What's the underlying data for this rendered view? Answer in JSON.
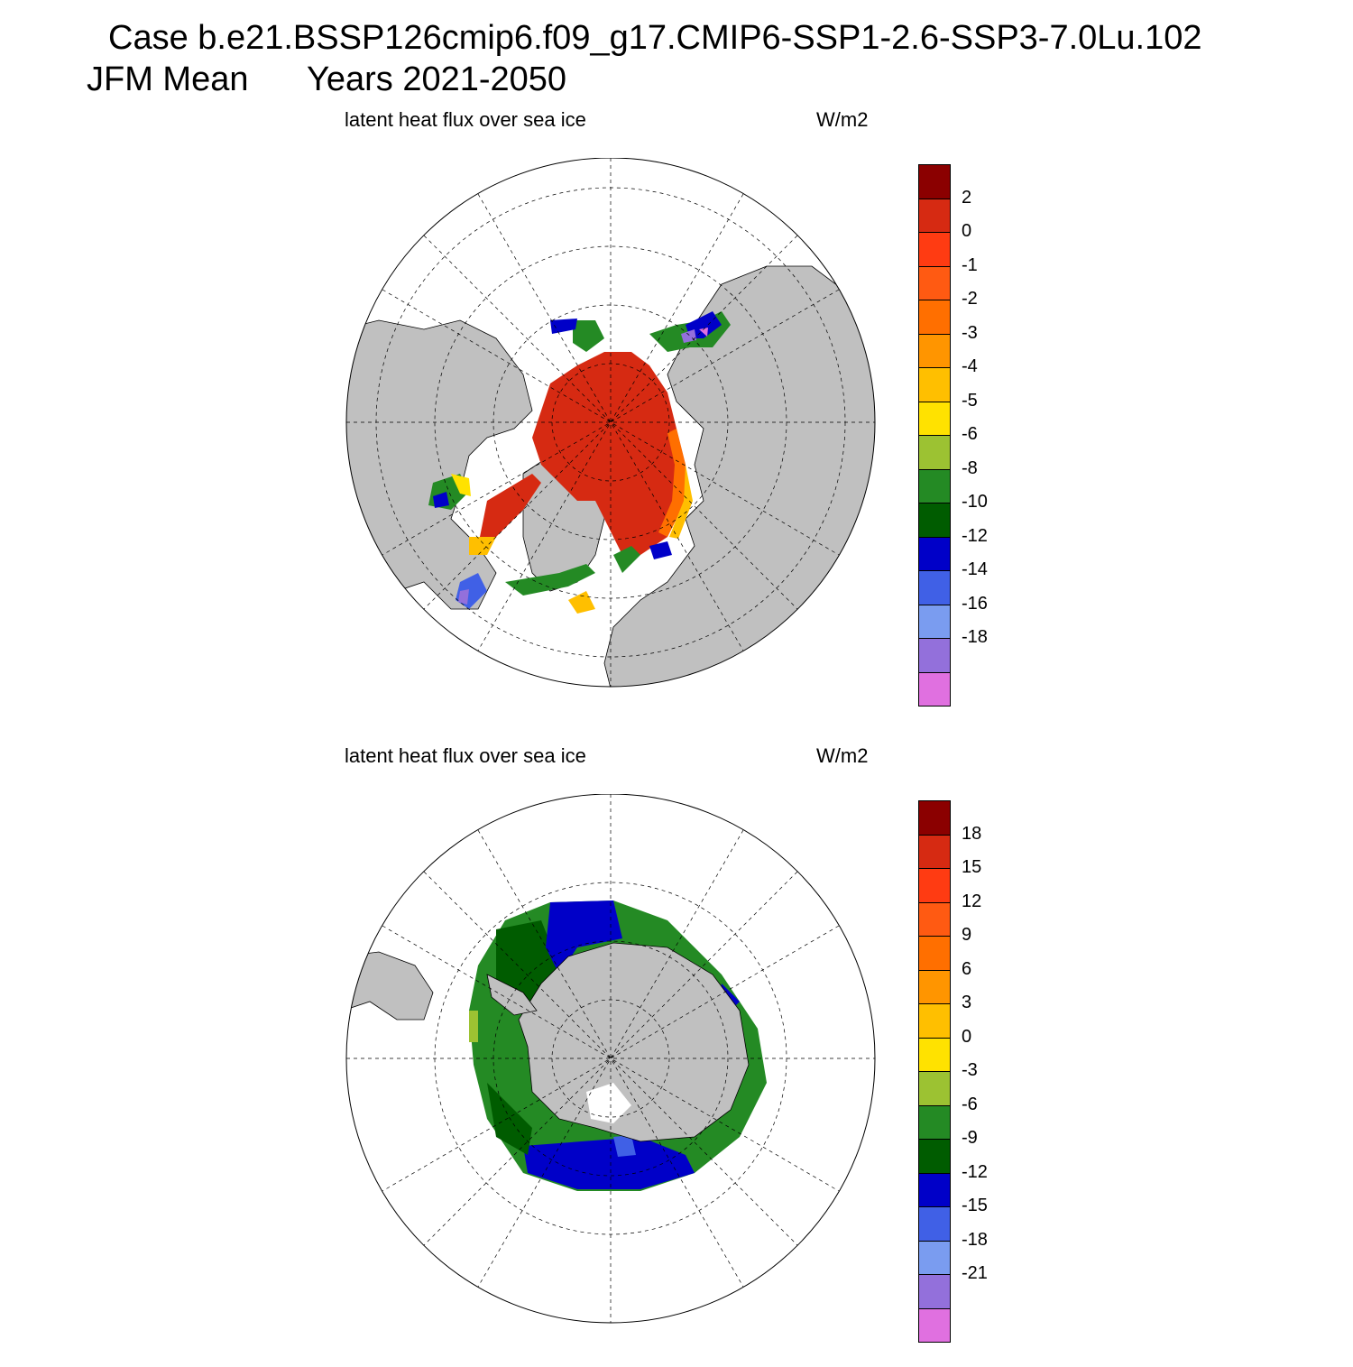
{
  "title": {
    "line1": "Case b.e21.BSSP126cmip6.f09_g17.CMIP6-SSP1-2.6-SSP3-7.0Lu.102",
    "line2_left": "JFM Mean",
    "line2_right": "Years 2021-2050"
  },
  "panels": [
    {
      "id": "north",
      "variable_label": "latent heat flux over sea ice",
      "unit_label": "W/m2",
      "region": "Arctic",
      "colorbar": {
        "colors": [
          "#8b0000",
          "#d62a12",
          "#ff3b12",
          "#ff5a12",
          "#ff6f00",
          "#ff9500",
          "#ffbf00",
          "#ffe200",
          "#9cc232",
          "#248a24",
          "#005c00",
          "#0000c8",
          "#4060e6",
          "#7a9cf0",
          "#9370db",
          "#e070e0"
        ],
        "labels": [
          "2",
          "0",
          "-1",
          "-2",
          "-3",
          "-4",
          "-5",
          "-6",
          "-8",
          "-10",
          "-12",
          "-14",
          "-16",
          "-18"
        ]
      }
    },
    {
      "id": "south",
      "variable_label": "latent heat flux over sea ice",
      "unit_label": "W/m2",
      "region": "Antarctic",
      "colorbar": {
        "colors": [
          "#8b0000",
          "#d62a12",
          "#ff3b12",
          "#ff5a12",
          "#ff6f00",
          "#ff9500",
          "#ffbf00",
          "#ffe200",
          "#9cc232",
          "#248a24",
          "#005c00",
          "#0000c8",
          "#4060e6",
          "#7a9cf0",
          "#9370db",
          "#e070e0"
        ],
        "labels": [
          "18",
          "15",
          "12",
          "9",
          "6",
          "3",
          "0",
          "-3",
          "-6",
          "-9",
          "-12",
          "-15",
          "-18",
          "-21"
        ]
      }
    }
  ],
  "colors": {
    "land": "#c0c0c0",
    "ocean": "#ffffff"
  }
}
